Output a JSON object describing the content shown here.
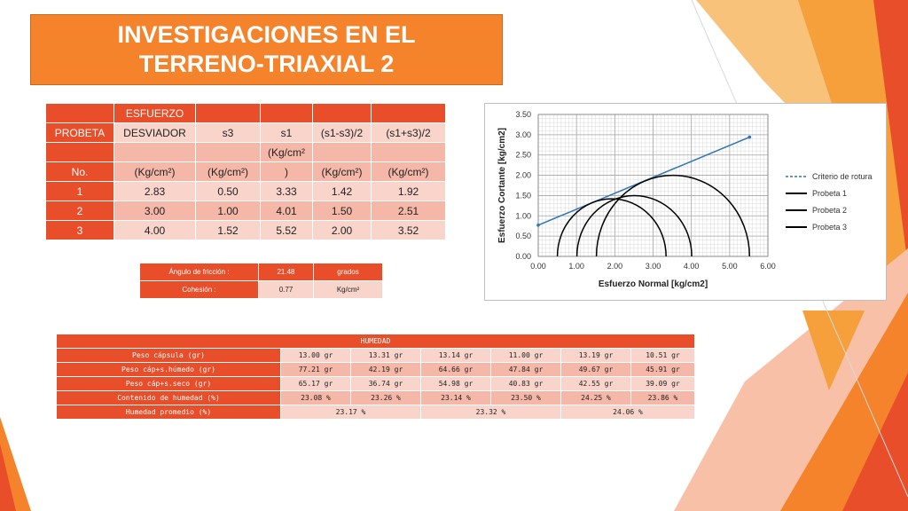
{
  "title": {
    "line1": "INVESTIGACIONES EN EL",
    "line2": "TERRENO-TRIAXIAL 2"
  },
  "triaxial_table": {
    "header_row1": [
      "",
      "ESFUERZO",
      "",
      "",
      "",
      ""
    ],
    "header_row2": [
      "PROBETA",
      "DESVIADOR",
      "s3",
      "s1",
      "(s1-s3)/2",
      "(s1+s3)/2"
    ],
    "header_row3a": [
      "",
      "",
      "",
      "(Kg/cm²",
      "",
      ""
    ],
    "header_row3b": [
      "No.",
      "(Kg/cm²)",
      "(Kg/cm²)",
      ")",
      "(Kg/cm²)",
      "(Kg/cm²)"
    ],
    "rows": [
      [
        "1",
        "2.83",
        "0.50",
        "3.33",
        "1.42",
        "1.92"
      ],
      [
        "2",
        "3.00",
        "1.00",
        "4.01",
        "1.50",
        "2.51"
      ],
      [
        "3",
        "4.00",
        "1.52",
        "5.52",
        "2.00",
        "3.52"
      ]
    ]
  },
  "strength_params": {
    "friction_label": "Ángulo de fricción :",
    "friction_value": "21.48",
    "friction_unit": "grados",
    "cohesion_label": "Cohesión :",
    "cohesion_value": "0.77",
    "cohesion_unit": "Kg/cm²"
  },
  "humedad_table": {
    "title": "HUMEDAD",
    "rows": [
      {
        "label": "Peso cápsula (gr)",
        "values": [
          "13.00 gr",
          "13.31 gr",
          "13.14 gr",
          "11.00 gr",
          "13.19 gr",
          "10.51 gr"
        ]
      },
      {
        "label": "Peso cáp+s.húmedo (gr)",
        "values": [
          "77.21 gr",
          "42.19 gr",
          "64.66 gr",
          "47.84 gr",
          "49.67 gr",
          "45.91 gr"
        ]
      },
      {
        "label": "Peso cáp+s.seco (gr)",
        "values": [
          "65.17 gr",
          "36.74 gr",
          "54.98 gr",
          "40.83 gr",
          "42.55 gr",
          "39.09 gr"
        ]
      },
      {
        "label": "Contenido de humedad (%)",
        "values": [
          "23.08 %",
          "23.26 %",
          "23.14 %",
          "23.50 %",
          "24.25 %",
          "23.86 %"
        ]
      }
    ],
    "avg_label": "Humedad promedio (%)",
    "avg_values": [
      "23.17 %",
      "23.32 %",
      "24.06 %"
    ]
  },
  "chart_data": {
    "type": "line",
    "xlabel": "Esfuerzo Normal [kg/cm2]",
    "ylabel": "Esfuerzo Cortante [kg/cm2]",
    "xlim": [
      0,
      6
    ],
    "ylim": [
      0,
      3.5
    ],
    "x_ticks": [
      "0.00",
      "1.00",
      "2.00",
      "3.00",
      "4.00",
      "5.00",
      "6.00"
    ],
    "y_ticks": [
      "0.00",
      "0.50",
      "1.00",
      "1.50",
      "2.00",
      "2.50",
      "3.00",
      "3.50"
    ],
    "grid": true,
    "legend_position": "right",
    "series": [
      {
        "name": "Criterio de rotura",
        "color": "#2e75b6",
        "x": [
          0,
          5.52
        ],
        "y": [
          0.77,
          2.94
        ]
      },
      {
        "name": "Probeta 1",
        "color": "#000000",
        "center": 1.92,
        "radius": 1.42
      },
      {
        "name": "Probeta 2",
        "color": "#000000",
        "center": 2.51,
        "radius": 1.5
      },
      {
        "name": "Probeta 3",
        "color": "#000000",
        "center": 3.52,
        "radius": 2.0
      }
    ]
  }
}
